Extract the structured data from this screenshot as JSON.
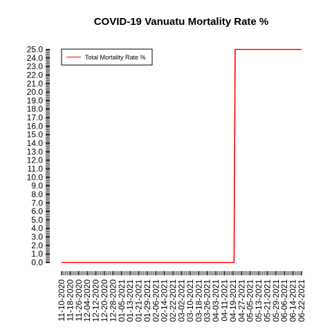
{
  "chart_data": {
    "type": "line",
    "title": "COVID-19 Vanuatu Mortality Rate %",
    "xlabel": "",
    "ylabel": "",
    "x_start": "11-10-2020",
    "x_end": "06-22-2021",
    "x_tick_labels": [
      "11-10-2020",
      "11-18-2020",
      "11-26-2020",
      "12-04-2020",
      "12-12-2020",
      "12-20-2020",
      "12-28-2020",
      "01-05-2021",
      "01-13-2021",
      "01-21-2021",
      "01-29-2021",
      "02-06-2021",
      "02-14-2021",
      "02-22-2021",
      "03-02-2021",
      "03-10-2021",
      "03-18-2021",
      "03-26-2021",
      "04-03-2021",
      "04-11-2021",
      "04-19-2021",
      "04-27-2021",
      "05-05-2021",
      "05-13-2021",
      "05-21-2021",
      "05-29-2021",
      "06-06-2021",
      "06-14-2021",
      "06-22-2021"
    ],
    "y_tick_labels": [
      "0.0",
      "1.0",
      "2.0",
      "3.0",
      "4.0",
      "5.0",
      "6.0",
      "7.0",
      "8.0",
      "9.0",
      "10.0",
      "11.0",
      "12.0",
      "13.0",
      "14.0",
      "15.0",
      "16.0",
      "17.0",
      "18.0",
      "19.0",
      "20.0",
      "21.0",
      "22.0",
      "23.0",
      "24.0",
      "25.0"
    ],
    "ylim": [
      0,
      25
    ],
    "series": [
      {
        "name": "Total Mortality Rate %",
        "color": "#ff0000",
        "points": [
          {
            "x": "11-10-2020",
            "y": 0.0
          },
          {
            "x": "04-20-2021",
            "y": 0.0
          },
          {
            "x": "04-21-2021",
            "y": 25.0
          },
          {
            "x": "06-22-2021",
            "y": 25.0
          }
        ]
      }
    ],
    "legend_position": "top-left",
    "grid": false
  }
}
